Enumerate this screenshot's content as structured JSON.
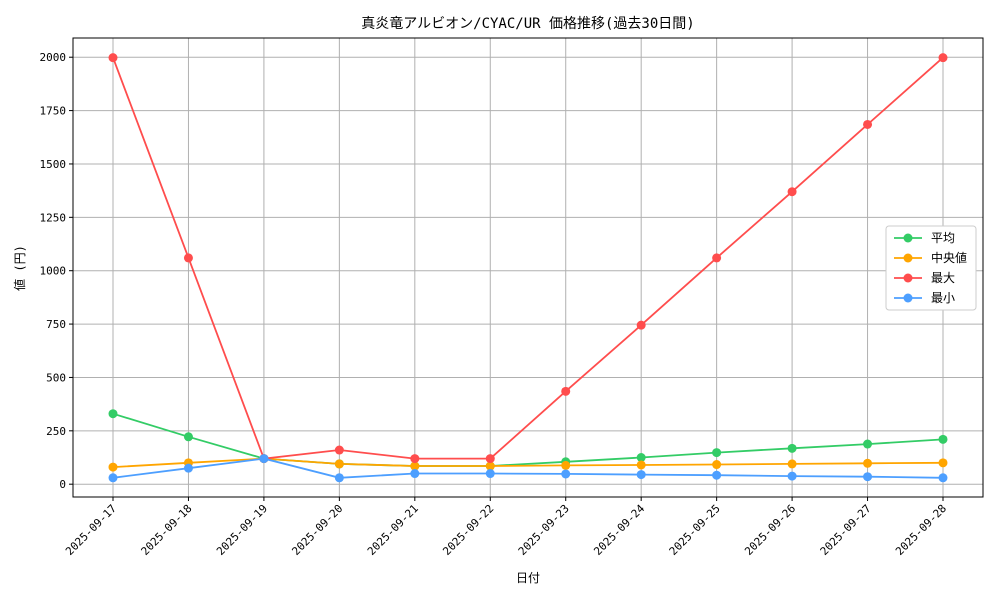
{
  "chart_data": {
    "type": "line",
    "title": "真炎竜アルビオン/CYAC/UR 価格推移(過去30日間)",
    "xlabel": "日付",
    "ylabel": "値 (円)",
    "categories": [
      "2025-09-17",
      "2025-09-18",
      "2025-09-19",
      "2025-09-20",
      "2025-09-21",
      "2025-09-22",
      "2025-09-23",
      "2025-09-24",
      "2025-09-25",
      "2025-09-26",
      "2025-09-27",
      "2025-09-28"
    ],
    "ylim": [
      -60,
      2090
    ],
    "yticks": [
      0,
      250,
      500,
      750,
      1000,
      1250,
      1500,
      1750,
      2000
    ],
    "grid": true,
    "legend_position": "center-right",
    "series": [
      {
        "name": "平均",
        "color": "#33cc66",
        "values": [
          330,
          222,
          120,
          95,
          85,
          85,
          105,
          125,
          148,
          168,
          188,
          210
        ]
      },
      {
        "name": "中央値",
        "color": "#ffa500",
        "values": [
          80,
          100,
          120,
          95,
          85,
          85,
          88,
          90,
          92,
          95,
          98,
          100
        ]
      },
      {
        "name": "最大",
        "color": "#ff4d4d",
        "values": [
          1998,
          1060,
          120,
          160,
          120,
          120,
          435,
          745,
          1060,
          1370,
          1685,
          1998
        ]
      },
      {
        "name": "最小",
        "color": "#4d9fff",
        "values": [
          30,
          75,
          120,
          30,
          50,
          50,
          48,
          45,
          42,
          38,
          35,
          30
        ]
      }
    ]
  }
}
